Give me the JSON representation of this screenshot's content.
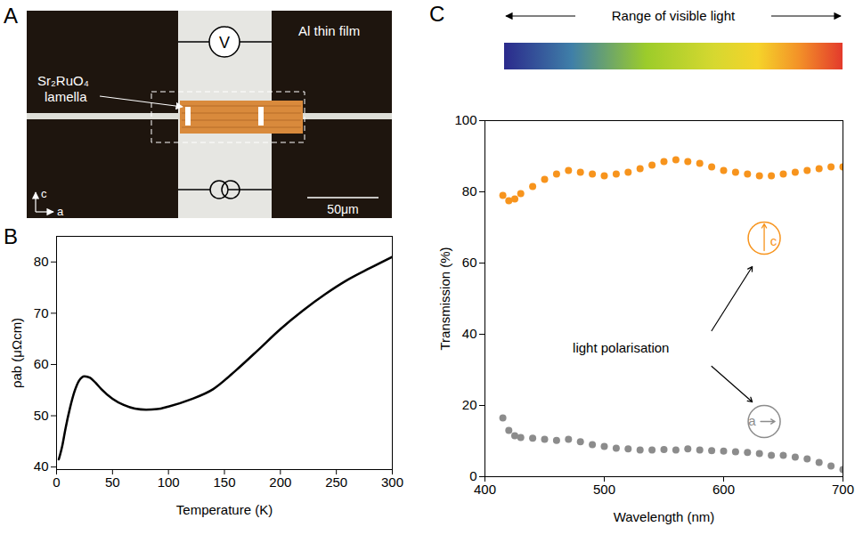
{
  "diagram": {
    "panel": "A",
    "labels": {
      "sample": "Sr₂RuO₄ lamella",
      "film": "Al thin film",
      "voltmeter": "V",
      "axis_vertical": "c",
      "axis_horizontal": "a",
      "scale_bar": "50μm"
    }
  },
  "chart_data": [
    {
      "panel": "B",
      "type": "line",
      "x_label": "Temperature (K)",
      "y_label": "ρab (μΩcm)",
      "x": [
        2,
        5,
        8,
        12,
        16,
        20,
        25,
        30,
        35,
        40,
        50,
        60,
        70,
        80,
        90,
        100,
        120,
        140,
        160,
        180,
        200,
        220,
        240,
        260,
        280,
        300
      ],
      "values": [
        41.5,
        44,
        47.5,
        51.5,
        54.7,
        56.8,
        57.7,
        57.4,
        56.4,
        55.2,
        53.3,
        52.1,
        51.4,
        51.2,
        51.3,
        51.8,
        53.2,
        55.2,
        58.8,
        62.8,
        66.9,
        70.5,
        73.7,
        76.5,
        78.8,
        81
      ],
      "color": "#000000",
      "xlim": [
        0,
        300
      ],
      "xticks": [
        0,
        50,
        100,
        150,
        200,
        250,
        300
      ],
      "ylim": [
        39.5,
        85
      ],
      "yticks": [
        40,
        50,
        60,
        70,
        80
      ],
      "grid": false
    },
    {
      "panel": "C",
      "type": "scatter",
      "title": "Range of visible light",
      "annotation": "light polarisation",
      "x_label": "Wavelength (nm)",
      "y_label": "Transmission (%)",
      "x": [
        415,
        420,
        425,
        430,
        440,
        450,
        460,
        470,
        480,
        490,
        500,
        510,
        520,
        530,
        540,
        550,
        560,
        570,
        580,
        590,
        600,
        610,
        620,
        630,
        640,
        650,
        660,
        670,
        680,
        690,
        700
      ],
      "series": [
        {
          "name": "c",
          "color": "#f7941d",
          "marker": "circle",
          "values": [
            79,
            77.5,
            78,
            79.5,
            81.5,
            83.5,
            85,
            86,
            85.5,
            85,
            84.5,
            85,
            85.5,
            86.5,
            87.5,
            88.5,
            89,
            88.5,
            88,
            87,
            86,
            85.5,
            85,
            84.5,
            84.5,
            85,
            85.5,
            86,
            86.5,
            87,
            87
          ]
        },
        {
          "name": "a",
          "color": "#8c8c8c",
          "marker": "circle",
          "values": [
            16.5,
            13,
            11.5,
            11,
            10.8,
            10.5,
            10.2,
            10.5,
            9.8,
            9,
            8.5,
            8,
            7.8,
            7.5,
            7.5,
            7.6,
            7.5,
            7.8,
            7.5,
            7.3,
            7.2,
            7,
            6.8,
            6.5,
            6,
            6,
            5.5,
            5,
            4,
            3,
            2
          ]
        }
      ],
      "xlim": [
        400,
        700
      ],
      "xticks": [
        400,
        500,
        600,
        700
      ],
      "ylim": [
        0,
        100
      ],
      "yticks": [
        0,
        20,
        40,
        60,
        80,
        100
      ],
      "grid": false
    }
  ]
}
